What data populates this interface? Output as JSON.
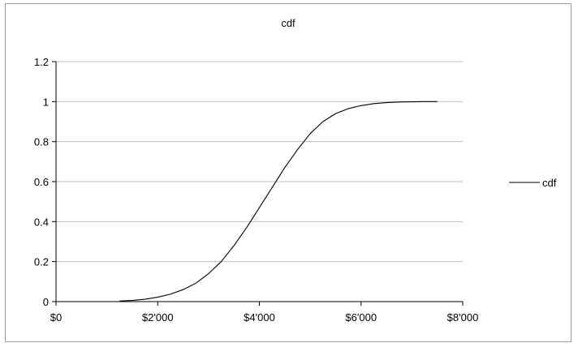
{
  "chart_data": {
    "type": "line",
    "title": "cdf",
    "xlabel": "",
    "ylabel": "",
    "xlim": [
      0,
      8000
    ],
    "ylim": [
      0,
      1.2
    ],
    "x_ticks": [
      {
        "value": 0,
        "label": "$0"
      },
      {
        "value": 2000,
        "label": "$2'000"
      },
      {
        "value": 4000,
        "label": "$4'000"
      },
      {
        "value": 6000,
        "label": "$6'000"
      },
      {
        "value": 8000,
        "label": "$8'000"
      }
    ],
    "y_ticks": [
      {
        "value": 0,
        "label": "0"
      },
      {
        "value": 0.2,
        "label": "0.2"
      },
      {
        "value": 0.4,
        "label": "0.4"
      },
      {
        "value": 0.6,
        "label": "0.6"
      },
      {
        "value": 0.8,
        "label": "0.8"
      },
      {
        "value": 1.0,
        "label": "1"
      },
      {
        "value": 1.2,
        "label": "1.2"
      }
    ],
    "grid": "horizontal",
    "legend_position": "right",
    "series": [
      {
        "name": "cdf",
        "color": "#000000",
        "x": [
          1250,
          1500,
          1750,
          2000,
          2250,
          2500,
          2750,
          3000,
          3250,
          3500,
          3750,
          4000,
          4250,
          4500,
          4750,
          5000,
          5250,
          5500,
          5750,
          6000,
          6250,
          6500,
          6750,
          7000,
          7250,
          7500
        ],
        "values": [
          0.003,
          0.006,
          0.012,
          0.022,
          0.037,
          0.06,
          0.092,
          0.14,
          0.2,
          0.28,
          0.37,
          0.47,
          0.57,
          0.67,
          0.76,
          0.84,
          0.9,
          0.94,
          0.965,
          0.98,
          0.99,
          0.995,
          0.998,
          0.999,
          1.0,
          1.0
        ]
      }
    ]
  }
}
